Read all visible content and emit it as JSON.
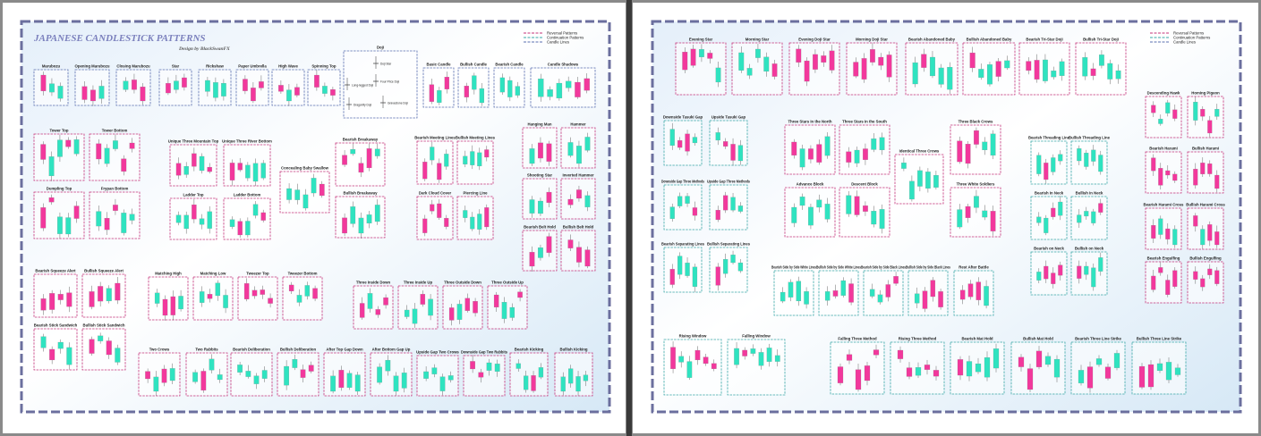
{
  "header": {
    "title": "JAPANESE CANDLESTICK PATTERNS",
    "subtitle": "Design by BlackSwanFX"
  },
  "legend": [
    "Reversal Patterns",
    "Continuation Patterns",
    "Candle Lines"
  ],
  "panels": [
    {
      "label": "Marubozu"
    },
    {
      "label": "Opening Marubozu"
    },
    {
      "label": "Closing Marubozu"
    },
    {
      "label": "Star"
    },
    {
      "label": "Rickshaw"
    },
    {
      "label": "Paper Umbrella"
    },
    {
      "label": "High Wave"
    },
    {
      "label": "Spinning Top"
    },
    {
      "label": "Doji",
      "notes": [
        "Doji Star",
        "Four Price Doji",
        "Long-legged Doji",
        "Gravestone Doji",
        "Dragonfly Doji"
      ]
    },
    {
      "label": "Basic Candle"
    },
    {
      "label": "Bullish Candle"
    },
    {
      "label": "Bearish Candle"
    },
    {
      "label": "Candle Shadows"
    },
    {
      "label": "Tower Top"
    },
    {
      "label": "Tower Bottom"
    },
    {
      "label": "Dumpling Top"
    },
    {
      "label": "Frypan Bottom"
    },
    {
      "label": "Unique Three Mountain Top"
    },
    {
      "label": "Unique Three River Bottom"
    },
    {
      "label": "Ladder Top"
    },
    {
      "label": "Ladder Bottom"
    },
    {
      "label": "Concealing Baby Swallow"
    },
    {
      "label": "Bearish Breakaway"
    },
    {
      "label": "Bullish Breakaway"
    },
    {
      "label": "Bearish Meeting Lines"
    },
    {
      "label": "Bullish Meeting Lines"
    },
    {
      "label": "Dark Cloud Cover"
    },
    {
      "label": "Piercing Line"
    },
    {
      "label": "Hanging Man"
    },
    {
      "label": "Hammer"
    },
    {
      "label": "Shooting Star"
    },
    {
      "label": "Inverted Hammer"
    },
    {
      "label": "Bearish Belt Hold"
    },
    {
      "label": "Bullish Belt Hold"
    },
    {
      "label": "Bearish Squeeze Alert"
    },
    {
      "label": "Bullish Squeeze Alert"
    },
    {
      "label": "Bearish Stick Sandwich"
    },
    {
      "label": "Bullish Stick Sandwich"
    },
    {
      "label": "Matching High"
    },
    {
      "label": "Matching Low"
    },
    {
      "label": "Tweezer Top"
    },
    {
      "label": "Tweezer Bottom"
    },
    {
      "label": "Three Inside Down"
    },
    {
      "label": "Three Inside Up"
    },
    {
      "label": "Three Outside Down"
    },
    {
      "label": "Three Outside Up"
    },
    {
      "label": "Two Crows"
    },
    {
      "label": "Two Rabbits"
    },
    {
      "label": "Bearish Deliberation"
    },
    {
      "label": "Bullish Deliberation"
    },
    {
      "label": "After Top Gap Down"
    },
    {
      "label": "After Bottom Gap Up"
    },
    {
      "label": "Upside Gap Two Crows"
    },
    {
      "label": "Downside Gap Two Rabbits"
    },
    {
      "label": "Bearish Kicking"
    },
    {
      "label": "Bullish Kicking"
    },
    {
      "label": "Evening Star"
    },
    {
      "label": "Morning Star"
    },
    {
      "label": "Evening Doji Star"
    },
    {
      "label": "Morning Doji Star"
    },
    {
      "label": "Bearish Abandoned Baby"
    },
    {
      "label": "Bullish Abandoned Baby"
    },
    {
      "label": "Bearish Tri-Star Doji"
    },
    {
      "label": "Bullish Tri-Star Doji"
    },
    {
      "label": "Descending Hawk"
    },
    {
      "label": "Homing Pigeon"
    },
    {
      "label": "Bearish Harami"
    },
    {
      "label": "Bullish Harami"
    },
    {
      "label": "Bearish Harami Cross"
    },
    {
      "label": "Bullish Harami Cross"
    },
    {
      "label": "Bearish Engulfing"
    },
    {
      "label": "Bullish Engulfing"
    },
    {
      "label": "Downside Tasuki Gap"
    },
    {
      "label": "Upside Tasuki Gap"
    },
    {
      "label": "Downside Gap Three Methods"
    },
    {
      "label": "Upside Gap Three Methods"
    },
    {
      "label": "Bearish Separating Lines"
    },
    {
      "label": "Bullish Separating Lines"
    },
    {
      "label": "Three Stars in the North"
    },
    {
      "label": "Three Stars in the South"
    },
    {
      "label": "Advance Block"
    },
    {
      "label": "Descent Block"
    },
    {
      "label": "Identical Three Crows"
    },
    {
      "label": "Three Black Crows"
    },
    {
      "label": "Three White Soldiers"
    },
    {
      "label": "Bearish Threading Line"
    },
    {
      "label": "Bullish Threading Line"
    },
    {
      "label": "Bearish In Neck"
    },
    {
      "label": "Bullish In Neck"
    },
    {
      "label": "Bearish on Neck"
    },
    {
      "label": "Bullish on Neck"
    },
    {
      "label": "Bearish Side by Side White Lines"
    },
    {
      "label": "Bullish Side by Side White Lines"
    },
    {
      "label": "Bearish Side by Side Black Lines"
    },
    {
      "label": "Bullish Side by Side Black Lines"
    },
    {
      "label": "Rest After Battle"
    },
    {
      "label": "Rising Window"
    },
    {
      "label": "Falling Window"
    },
    {
      "label": "Falling Three Method"
    },
    {
      "label": "Rising Three Method"
    },
    {
      "label": "Bearish Mat Hold"
    },
    {
      "label": "Bullish Mat Hold"
    },
    {
      "label": "Bearish Three Line Strike"
    },
    {
      "label": "Bullish Three Line Strike"
    }
  ]
}
